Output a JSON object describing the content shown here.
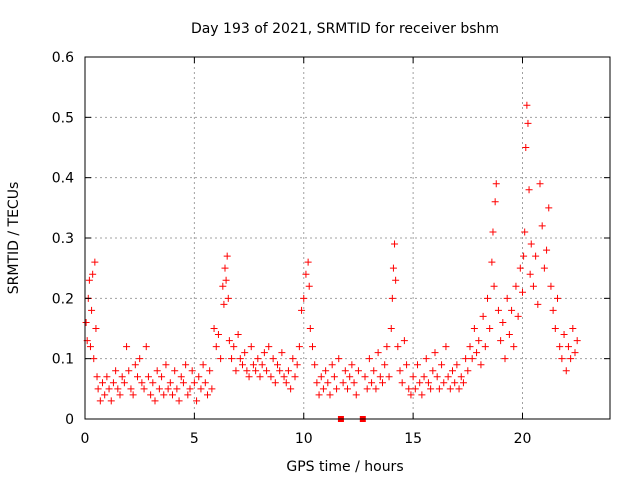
{
  "chart_data": {
    "type": "scatter",
    "title": "Day 193 of 2021, SRMTID for receiver bshm",
    "xlabel": "GPS time / hours",
    "ylabel": "SRMTID / TECUs",
    "xlim": [
      0,
      24.0
    ],
    "ylim": [
      0,
      0.6
    ],
    "xticks": [
      0,
      5,
      10,
      15,
      20
    ],
    "yticks": [
      0,
      0.1,
      0.2,
      0.3,
      0.4,
      0.5,
      0.6
    ],
    "ytick_labels": [
      "0",
      "0.1",
      "0.2",
      "0.3",
      "0.4",
      "0.5",
      "0.6"
    ],
    "grid": true,
    "marker": "plus",
    "color": "#ff0000",
    "gap_markers_x": [
      11.7,
      12.7
    ],
    "series": [
      {
        "name": "SRMTID",
        "points": [
          [
            0.05,
            0.16
          ],
          [
            0.1,
            0.13
          ],
          [
            0.15,
            0.2
          ],
          [
            0.2,
            0.23
          ],
          [
            0.25,
            0.12
          ],
          [
            0.3,
            0.18
          ],
          [
            0.35,
            0.24
          ],
          [
            0.4,
            0.1
          ],
          [
            0.45,
            0.26
          ],
          [
            0.5,
            0.15
          ],
          [
            0.55,
            0.07
          ],
          [
            0.6,
            0.05
          ],
          [
            0.7,
            0.03
          ],
          [
            0.8,
            0.06
          ],
          [
            0.9,
            0.04
          ],
          [
            1.0,
            0.07
          ],
          [
            1.1,
            0.05
          ],
          [
            1.2,
            0.03
          ],
          [
            1.3,
            0.06
          ],
          [
            1.4,
            0.08
          ],
          [
            1.5,
            0.05
          ],
          [
            1.6,
            0.04
          ],
          [
            1.7,
            0.07
          ],
          [
            1.8,
            0.06
          ],
          [
            1.9,
            0.12
          ],
          [
            2.0,
            0.08
          ],
          [
            2.1,
            0.05
          ],
          [
            2.2,
            0.04
          ],
          [
            2.3,
            0.09
          ],
          [
            2.4,
            0.07
          ],
          [
            2.5,
            0.1
          ],
          [
            2.6,
            0.06
          ],
          [
            2.7,
            0.05
          ],
          [
            2.8,
            0.12
          ],
          [
            2.9,
            0.07
          ],
          [
            3.0,
            0.04
          ],
          [
            3.1,
            0.06
          ],
          [
            3.2,
            0.03
          ],
          [
            3.3,
            0.08
          ],
          [
            3.4,
            0.05
          ],
          [
            3.5,
            0.07
          ],
          [
            3.6,
            0.04
          ],
          [
            3.7,
            0.09
          ],
          [
            3.8,
            0.05
          ],
          [
            3.9,
            0.06
          ],
          [
            4.0,
            0.04
          ],
          [
            4.1,
            0.08
          ],
          [
            4.2,
            0.05
          ],
          [
            4.3,
            0.03
          ],
          [
            4.4,
            0.07
          ],
          [
            4.5,
            0.06
          ],
          [
            4.6,
            0.09
          ],
          [
            4.7,
            0.04
          ],
          [
            4.8,
            0.05
          ],
          [
            4.9,
            0.08
          ],
          [
            5.0,
            0.06
          ],
          [
            5.1,
            0.03
          ],
          [
            5.2,
            0.07
          ],
          [
            5.3,
            0.05
          ],
          [
            5.4,
            0.09
          ],
          [
            5.5,
            0.06
          ],
          [
            5.6,
            0.04
          ],
          [
            5.7,
            0.08
          ],
          [
            5.8,
            0.05
          ],
          [
            5.9,
            0.15
          ],
          [
            6.0,
            0.12
          ],
          [
            6.1,
            0.14
          ],
          [
            6.2,
            0.1
          ],
          [
            6.3,
            0.22
          ],
          [
            6.35,
            0.19
          ],
          [
            6.4,
            0.25
          ],
          [
            6.45,
            0.23
          ],
          [
            6.5,
            0.27
          ],
          [
            6.55,
            0.2
          ],
          [
            6.6,
            0.13
          ],
          [
            6.7,
            0.1
          ],
          [
            6.8,
            0.12
          ],
          [
            6.9,
            0.08
          ],
          [
            7.0,
            0.14
          ],
          [
            7.1,
            0.1
          ],
          [
            7.2,
            0.09
          ],
          [
            7.3,
            0.11
          ],
          [
            7.4,
            0.08
          ],
          [
            7.5,
            0.07
          ],
          [
            7.6,
            0.12
          ],
          [
            7.7,
            0.09
          ],
          [
            7.8,
            0.08
          ],
          [
            7.9,
            0.1
          ],
          [
            8.0,
            0.07
          ],
          [
            8.1,
            0.09
          ],
          [
            8.2,
            0.11
          ],
          [
            8.3,
            0.08
          ],
          [
            8.4,
            0.12
          ],
          [
            8.5,
            0.07
          ],
          [
            8.6,
            0.1
          ],
          [
            8.7,
            0.06
          ],
          [
            8.8,
            0.09
          ],
          [
            8.9,
            0.08
          ],
          [
            9.0,
            0.11
          ],
          [
            9.1,
            0.07
          ],
          [
            9.2,
            0.06
          ],
          [
            9.3,
            0.08
          ],
          [
            9.4,
            0.05
          ],
          [
            9.5,
            0.1
          ],
          [
            9.6,
            0.07
          ],
          [
            9.7,
            0.09
          ],
          [
            9.8,
            0.12
          ],
          [
            9.9,
            0.18
          ],
          [
            10.0,
            0.2
          ],
          [
            10.1,
            0.24
          ],
          [
            10.2,
            0.26
          ],
          [
            10.25,
            0.22
          ],
          [
            10.3,
            0.15
          ],
          [
            10.4,
            0.12
          ],
          [
            10.5,
            0.09
          ],
          [
            10.6,
            0.06
          ],
          [
            10.7,
            0.04
          ],
          [
            10.8,
            0.07
          ],
          [
            10.9,
            0.05
          ],
          [
            11.0,
            0.08
          ],
          [
            11.1,
            0.06
          ],
          [
            11.2,
            0.04
          ],
          [
            11.3,
            0.09
          ],
          [
            11.4,
            0.07
          ],
          [
            11.5,
            0.05
          ],
          [
            11.6,
            0.1
          ],
          [
            11.8,
            0.06
          ],
          [
            11.9,
            0.08
          ],
          [
            12.0,
            0.05
          ],
          [
            12.1,
            0.07
          ],
          [
            12.2,
            0.09
          ],
          [
            12.3,
            0.06
          ],
          [
            12.4,
            0.04
          ],
          [
            12.5,
            0.08
          ],
          [
            12.8,
            0.07
          ],
          [
            12.9,
            0.05
          ],
          [
            13.0,
            0.1
          ],
          [
            13.1,
            0.06
          ],
          [
            13.2,
            0.08
          ],
          [
            13.3,
            0.05
          ],
          [
            13.4,
            0.11
          ],
          [
            13.5,
            0.07
          ],
          [
            13.6,
            0.06
          ],
          [
            13.7,
            0.09
          ],
          [
            13.8,
            0.12
          ],
          [
            13.9,
            0.07
          ],
          [
            14.0,
            0.15
          ],
          [
            14.05,
            0.2
          ],
          [
            14.1,
            0.25
          ],
          [
            14.15,
            0.29
          ],
          [
            14.2,
            0.23
          ],
          [
            14.3,
            0.12
          ],
          [
            14.4,
            0.08
          ],
          [
            14.5,
            0.06
          ],
          [
            14.6,
            0.13
          ],
          [
            14.7,
            0.09
          ],
          [
            14.8,
            0.05
          ],
          [
            14.9,
            0.04
          ],
          [
            15.0,
            0.07
          ],
          [
            15.1,
            0.05
          ],
          [
            15.2,
            0.09
          ],
          [
            15.3,
            0.06
          ],
          [
            15.4,
            0.04
          ],
          [
            15.5,
            0.07
          ],
          [
            15.6,
            0.1
          ],
          [
            15.7,
            0.06
          ],
          [
            15.8,
            0.05
          ],
          [
            15.9,
            0.08
          ],
          [
            16.0,
            0.11
          ],
          [
            16.1,
            0.07
          ],
          [
            16.2,
            0.05
          ],
          [
            16.3,
            0.09
          ],
          [
            16.4,
            0.06
          ],
          [
            16.5,
            0.12
          ],
          [
            16.6,
            0.07
          ],
          [
            16.7,
            0.05
          ],
          [
            16.8,
            0.08
          ],
          [
            16.9,
            0.06
          ],
          [
            17.0,
            0.09
          ],
          [
            17.1,
            0.05
          ],
          [
            17.2,
            0.07
          ],
          [
            17.3,
            0.06
          ],
          [
            17.4,
            0.1
          ],
          [
            17.5,
            0.08
          ],
          [
            17.6,
            0.12
          ],
          [
            17.7,
            0.1
          ],
          [
            17.8,
            0.15
          ],
          [
            17.9,
            0.11
          ],
          [
            18.0,
            0.13
          ],
          [
            18.1,
            0.09
          ],
          [
            18.2,
            0.17
          ],
          [
            18.3,
            0.12
          ],
          [
            18.4,
            0.2
          ],
          [
            18.5,
            0.15
          ],
          [
            18.6,
            0.26
          ],
          [
            18.65,
            0.31
          ],
          [
            18.7,
            0.22
          ],
          [
            18.75,
            0.36
          ],
          [
            18.8,
            0.39
          ],
          [
            18.9,
            0.18
          ],
          [
            19.0,
            0.13
          ],
          [
            19.1,
            0.16
          ],
          [
            19.2,
            0.1
          ],
          [
            19.3,
            0.2
          ],
          [
            19.4,
            0.14
          ],
          [
            19.5,
            0.18
          ],
          [
            19.6,
            0.12
          ],
          [
            19.7,
            0.22
          ],
          [
            19.8,
            0.17
          ],
          [
            19.9,
            0.25
          ],
          [
            20.0,
            0.21
          ],
          [
            20.05,
            0.27
          ],
          [
            20.1,
            0.31
          ],
          [
            20.15,
            0.45
          ],
          [
            20.2,
            0.52
          ],
          [
            20.25,
            0.49
          ],
          [
            20.3,
            0.38
          ],
          [
            20.35,
            0.24
          ],
          [
            20.4,
            0.29
          ],
          [
            20.5,
            0.22
          ],
          [
            20.6,
            0.27
          ],
          [
            20.7,
            0.19
          ],
          [
            20.8,
            0.39
          ],
          [
            20.9,
            0.32
          ],
          [
            21.0,
            0.25
          ],
          [
            21.1,
            0.28
          ],
          [
            21.2,
            0.35
          ],
          [
            21.3,
            0.22
          ],
          [
            21.4,
            0.18
          ],
          [
            21.5,
            0.15
          ],
          [
            21.6,
            0.2
          ],
          [
            21.7,
            0.12
          ],
          [
            21.8,
            0.1
          ],
          [
            21.9,
            0.14
          ],
          [
            22.0,
            0.08
          ],
          [
            22.1,
            0.12
          ],
          [
            22.2,
            0.1
          ],
          [
            22.3,
            0.15
          ],
          [
            22.4,
            0.11
          ],
          [
            22.5,
            0.13
          ]
        ]
      }
    ]
  }
}
